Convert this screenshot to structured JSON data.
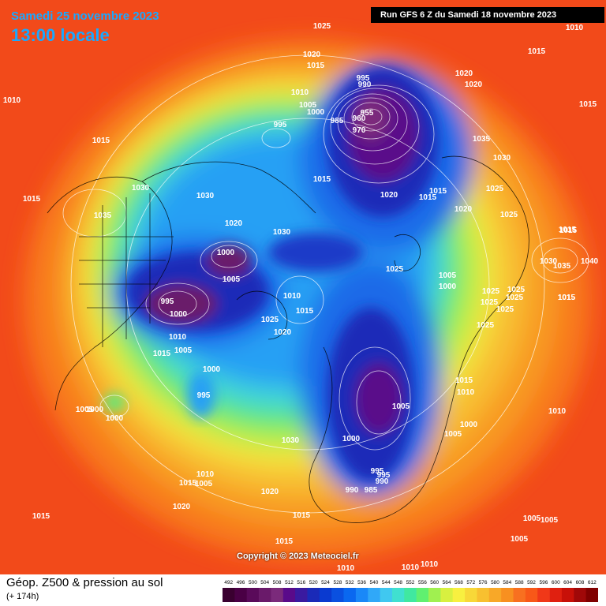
{
  "header": {
    "date": "Samedi 25 novembre 2023",
    "time": "13:00 locale",
    "run": "Run GFS 6 Z du Samedi 18 novembre 2023"
  },
  "copyright": "Copyright © 2023 Meteociel.fr",
  "footer": {
    "title": "Géop. Z500 & pression au sol",
    "forecast": "(+ 174h)"
  },
  "legend": {
    "values": [
      "492",
      "496",
      "500",
      "504",
      "508",
      "512",
      "516",
      "520",
      "524",
      "528",
      "532",
      "536",
      "540",
      "544",
      "548",
      "552",
      "556",
      "560",
      "564",
      "568",
      "572",
      "576",
      "580",
      "584",
      "588",
      "592",
      "596",
      "600",
      "604",
      "608",
      "612"
    ],
    "colors": [
      "#3a0030",
      "#4a0045",
      "#5a0a5a",
      "#6a1a6a",
      "#7b2a7b",
      "#5a0a8a",
      "#3a1aa0",
      "#1a2ab8",
      "#0a3ad0",
      "#0a50e0",
      "#0a68f0",
      "#1a88f8",
      "#30a8f8",
      "#40c8f0",
      "#40e0d0",
      "#40e8a0",
      "#60f070",
      "#a0f050",
      "#d8f040",
      "#f8f040",
      "#f8d838",
      "#f8c030",
      "#f8a828",
      "#f89020",
      "#f87020",
      "#f85818",
      "#f03818",
      "#e02010",
      "#c81008",
      "#a00808",
      "#800000"
    ]
  },
  "pressure_labels": [
    {
      "text": "1025"
    },
    {
      "text": "1010"
    },
    {
      "text": "1015"
    },
    {
      "text": "1020"
    },
    {
      "text": "1015"
    },
    {
      "text": "995"
    },
    {
      "text": "990"
    },
    {
      "text": "955"
    },
    {
      "text": "960"
    },
    {
      "text": "970"
    },
    {
      "text": "985"
    },
    {
      "text": "1010"
    },
    {
      "text": "1005"
    },
    {
      "text": "1000"
    },
    {
      "text": "995"
    },
    {
      "text": "1020"
    },
    {
      "text": "1020"
    },
    {
      "text": "1015"
    },
    {
      "text": "1010"
    },
    {
      "text": "1015"
    },
    {
      "text": "1035"
    },
    {
      "text": "1030"
    },
    {
      "text": "1025"
    },
    {
      "text": "1025"
    },
    {
      "text": "1015"
    },
    {
      "text": "1020"
    },
    {
      "text": "1015"
    },
    {
      "text": "1030"
    },
    {
      "text": "1035"
    },
    {
      "text": "1040"
    },
    {
      "text": "1015"
    },
    {
      "text": "1030"
    },
    {
      "text": "1030"
    },
    {
      "text": "1015"
    },
    {
      "text": "1035"
    },
    {
      "text": "1020"
    },
    {
      "text": "1030"
    },
    {
      "text": "1000"
    },
    {
      "text": "1005"
    },
    {
      "text": "995"
    },
    {
      "text": "1000"
    },
    {
      "text": "1010"
    },
    {
      "text": "1015"
    },
    {
      "text": "1005"
    },
    {
      "text": "1000"
    },
    {
      "text": "1025"
    },
    {
      "text": "1020"
    },
    {
      "text": "1010"
    },
    {
      "text": "1015"
    },
    {
      "text": "1020"
    },
    {
      "text": "1015"
    },
    {
      "text": "1025"
    },
    {
      "text": "1005"
    },
    {
      "text": "1000"
    },
    {
      "text": "1025"
    },
    {
      "text": "1025"
    },
    {
      "text": "1025"
    },
    {
      "text": "1015"
    },
    {
      "text": "1025"
    },
    {
      "text": "1025"
    },
    {
      "text": "995"
    },
    {
      "text": "1005"
    },
    {
      "text": "1000"
    },
    {
      "text": "1010"
    },
    {
      "text": "1000"
    },
    {
      "text": "1025"
    },
    {
      "text": "1030"
    },
    {
      "text": "1000"
    },
    {
      "text": "1015"
    },
    {
      "text": "1005"
    },
    {
      "text": "1000"
    },
    {
      "text": "1010"
    },
    {
      "text": "1015"
    },
    {
      "text": "995"
    },
    {
      "text": "1020"
    },
    {
      "text": "1015"
    },
    {
      "text": "990"
    },
    {
      "text": "985"
    },
    {
      "text": "990"
    },
    {
      "text": "995"
    },
    {
      "text": "1015"
    },
    {
      "text": "1010"
    },
    {
      "text": "1005"
    },
    {
      "text": "1005"
    },
    {
      "text": "1005"
    },
    {
      "text": "1005"
    },
    {
      "text": "1005"
    },
    {
      "text": "1015"
    },
    {
      "text": "1020"
    },
    {
      "text": "1015"
    },
    {
      "text": "1015"
    },
    {
      "text": "1010"
    },
    {
      "text": "1010"
    },
    {
      "text": "1010"
    }
  ]
}
